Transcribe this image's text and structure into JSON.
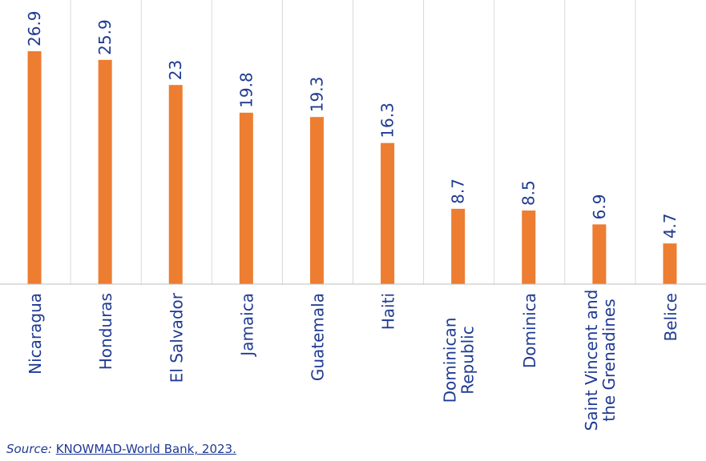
{
  "chart_data": {
    "type": "bar",
    "categories": [
      [
        "Nicaragua"
      ],
      [
        "Honduras"
      ],
      [
        "El Salvador"
      ],
      [
        "Jamaica"
      ],
      [
        "Guatemala"
      ],
      [
        "Haiti"
      ],
      [
        "Dominican",
        "Republic"
      ],
      [
        "Dominica"
      ],
      [
        "Saint Vincent and",
        "the Grenadines"
      ],
      [
        "Belice"
      ]
    ],
    "values": [
      26.9,
      25.9,
      23,
      19.8,
      19.3,
      16.3,
      8.7,
      8.5,
      6.9,
      4.7
    ],
    "value_labels": [
      "26.9",
      "25.9",
      "23",
      "19.8",
      "19.3",
      "16.3",
      "8.7",
      "8.5",
      "6.9",
      "4.7"
    ],
    "ylim": [
      0,
      27
    ],
    "grid": "vertical separators",
    "colors": {
      "bar": "#ED7D31",
      "text": "#1F3A93",
      "grid": "#D9D9D9",
      "axis": "#BFBFBF"
    }
  },
  "source": {
    "label": "Source:",
    "text": "KNOWMAD-World Bank, 2023."
  }
}
